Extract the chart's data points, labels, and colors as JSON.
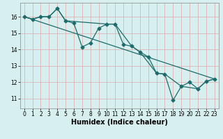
{
  "xlabel": "Humidex (Indice chaleur)",
  "background_color": "#d7efef",
  "grid_color": "#c0dddd",
  "line_color": "#1e6b6b",
  "xlim": [
    -0.5,
    23.5
  ],
  "ylim": [
    10.4,
    16.85
  ],
  "yticks": [
    11,
    12,
    13,
    14,
    15,
    16
  ],
  "xticks": [
    0,
    1,
    2,
    3,
    4,
    5,
    6,
    7,
    8,
    9,
    10,
    11,
    12,
    13,
    14,
    15,
    16,
    17,
    18,
    19,
    20,
    21,
    22,
    23
  ],
  "line1_x": [
    0,
    1,
    2,
    3,
    4,
    5,
    6,
    7,
    8,
    9,
    10,
    11,
    12,
    13,
    14,
    15,
    16,
    17,
    18,
    19,
    20,
    21,
    22,
    23
  ],
  "line1_y": [
    16.0,
    15.85,
    16.0,
    16.0,
    16.5,
    15.75,
    15.6,
    14.15,
    14.4,
    15.3,
    15.55,
    15.55,
    14.3,
    14.2,
    13.85,
    13.55,
    12.55,
    12.5,
    10.9,
    11.75,
    12.0,
    11.6,
    12.05,
    12.2
  ],
  "line2_x": [
    0,
    1,
    2,
    3,
    4,
    5,
    10,
    11,
    13,
    14,
    16,
    17,
    19,
    21,
    22,
    23
  ],
  "line2_y": [
    16.0,
    15.85,
    16.0,
    16.0,
    16.5,
    15.75,
    15.55,
    15.55,
    14.2,
    13.85,
    12.55,
    12.5,
    11.75,
    11.6,
    12.05,
    12.2
  ],
  "line3_x": [
    0,
    23
  ],
  "line3_y": [
    16.0,
    12.2
  ],
  "marker_size": 2.5,
  "line_width": 0.9,
  "tick_fontsize": 5.5,
  "label_fontsize": 7.0
}
